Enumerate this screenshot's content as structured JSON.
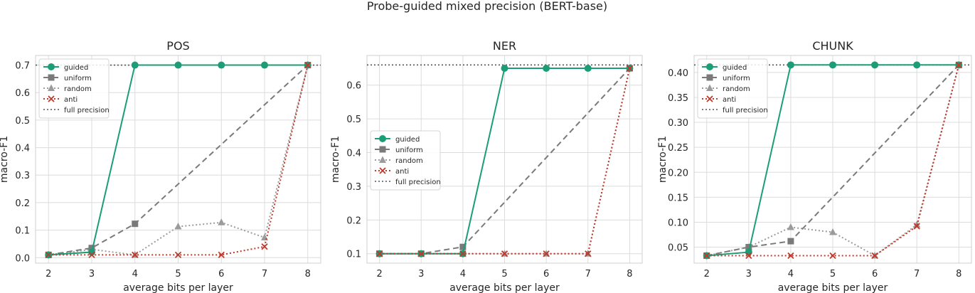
{
  "suptitle": "Probe-guided mixed precision (BERT-base)",
  "series_styles": {
    "guided": {
      "color": "#1b9e77",
      "dash": "",
      "marker": "circle",
      "width": 2
    },
    "uniform": {
      "color": "#7a7a7a",
      "dash": "8,5",
      "marker": "square",
      "width": 2
    },
    "random": {
      "color": "#9b9b9b",
      "dash": "2,3",
      "marker": "triangle",
      "width": 2
    },
    "anti": {
      "color": "#c0392b",
      "dash": "2,3",
      "marker": "x",
      "width": 2
    },
    "full precision": {
      "color": "#555555",
      "dash": "2,3",
      "marker": "none",
      "width": 1.6
    }
  },
  "chart_data": [
    {
      "type": "line",
      "title": "POS",
      "xlabel": "average bits per layer",
      "ylabel": "macro-F1",
      "x": [
        2,
        3,
        4,
        5,
        6,
        7,
        8
      ],
      "xlim": [
        1.7,
        8.3
      ],
      "ylim": [
        -0.02,
        0.735
      ],
      "yticks": [
        0.0,
        0.1,
        0.2,
        0.3,
        0.4,
        0.5,
        0.6,
        0.7
      ],
      "ytick_labels": [
        "0.0",
        "0.1",
        "0.2",
        "0.3",
        "0.4",
        "0.5",
        "0.6",
        "0.7"
      ],
      "grid": true,
      "legend_position": "upper-left",
      "series": [
        {
          "name": "guided",
          "points": [
            [
              2,
              0.01
            ],
            [
              3,
              0.02
            ],
            [
              4,
              0.7
            ],
            [
              5,
              0.7
            ],
            [
              6,
              0.7
            ],
            [
              7,
              0.7
            ],
            [
              8,
              0.7
            ]
          ]
        },
        {
          "name": "uniform",
          "points": [
            [
              2,
              0.01
            ],
            [
              3,
              0.035
            ],
            [
              4,
              0.123
            ],
            [
              8,
              0.7
            ]
          ]
        },
        {
          "name": "random",
          "points": [
            [
              2,
              0.01
            ],
            [
              3,
              0.03
            ],
            [
              4,
              0.01
            ],
            [
              5,
              0.113
            ],
            [
              6,
              0.128
            ],
            [
              7,
              0.073
            ],
            [
              8,
              0.7
            ]
          ]
        },
        {
          "name": "anti",
          "points": [
            [
              2,
              0.01
            ],
            [
              3,
              0.01
            ],
            [
              4,
              0.01
            ],
            [
              5,
              0.01
            ],
            [
              6,
              0.01
            ],
            [
              7,
              0.04
            ],
            [
              8,
              0.7
            ]
          ]
        }
      ],
      "reference": {
        "name": "full precision",
        "value": 0.7
      }
    },
    {
      "type": "line",
      "title": "NER",
      "xlabel": "average bits per layer",
      "ylabel": "macro-F1",
      "x": [
        2,
        3,
        4,
        5,
        6,
        7,
        8
      ],
      "xlim": [
        1.7,
        8.3
      ],
      "ylim": [
        0.072,
        0.688
      ],
      "yticks": [
        0.1,
        0.2,
        0.3,
        0.4,
        0.5,
        0.6
      ],
      "ytick_labels": [
        "0.1",
        "0.2",
        "0.3",
        "0.4",
        "0.5",
        "0.6"
      ],
      "grid": true,
      "legend_position": "center-left",
      "series": [
        {
          "name": "guided",
          "points": [
            [
              2,
              0.1
            ],
            [
              3,
              0.1
            ],
            [
              4,
              0.1
            ],
            [
              5,
              0.65
            ],
            [
              6,
              0.65
            ],
            [
              7,
              0.65
            ],
            [
              8,
              0.65
            ]
          ]
        },
        {
          "name": "uniform",
          "points": [
            [
              2,
              0.1
            ],
            [
              3,
              0.1
            ],
            [
              4,
              0.12
            ],
            [
              8,
              0.65
            ]
          ]
        },
        {
          "name": "random",
          "points": [
            [
              2,
              0.1
            ],
            [
              3,
              0.1
            ],
            [
              4,
              0.1
            ],
            [
              5,
              0.1
            ],
            [
              6,
              0.1
            ],
            [
              7,
              0.1
            ],
            [
              8,
              0.65
            ]
          ]
        },
        {
          "name": "anti",
          "points": [
            [
              2,
              0.1
            ],
            [
              3,
              0.1
            ],
            [
              4,
              0.1
            ],
            [
              5,
              0.1
            ],
            [
              6,
              0.1
            ],
            [
              7,
              0.1
            ],
            [
              8,
              0.65
            ]
          ]
        }
      ],
      "reference": {
        "name": "full precision",
        "value": 0.66
      }
    },
    {
      "type": "line",
      "title": "CHUNK",
      "xlabel": "average bits per layer",
      "ylabel": "macro-F1",
      "x": [
        2,
        3,
        4,
        5,
        6,
        7,
        8
      ],
      "xlim": [
        1.7,
        8.3
      ],
      "ylim": [
        0.018,
        0.434
      ],
      "yticks": [
        0.05,
        0.1,
        0.15,
        0.2,
        0.25,
        0.3,
        0.35,
        0.4
      ],
      "ytick_labels": [
        "0.05",
        "0.10",
        "0.15",
        "0.20",
        "0.25",
        "0.30",
        "0.35",
        "0.40"
      ],
      "grid": true,
      "legend_position": "upper-left",
      "series": [
        {
          "name": "guided",
          "points": [
            [
              2,
              0.033
            ],
            [
              3,
              0.04
            ],
            [
              4,
              0.415
            ],
            [
              5,
              0.415
            ],
            [
              6,
              0.415
            ],
            [
              7,
              0.415
            ],
            [
              8,
              0.415
            ]
          ]
        },
        {
          "name": "uniform",
          "points": [
            [
              2,
              0.033
            ],
            [
              3,
              0.05
            ],
            [
              4,
              0.062
            ],
            [
              8,
              0.415
            ]
          ]
        },
        {
          "name": "random",
          "points": [
            [
              2,
              0.033
            ],
            [
              3,
              0.05
            ],
            [
              4,
              0.09
            ],
            [
              5,
              0.08
            ],
            [
              6,
              0.033
            ],
            [
              7,
              0.095
            ],
            [
              8,
              0.415
            ]
          ]
        },
        {
          "name": "anti",
          "points": [
            [
              2,
              0.033
            ],
            [
              3,
              0.033
            ],
            [
              4,
              0.033
            ],
            [
              5,
              0.033
            ],
            [
              6,
              0.033
            ],
            [
              7,
              0.092
            ],
            [
              8,
              0.415
            ]
          ]
        }
      ],
      "reference": {
        "name": "full precision",
        "value": 0.415
      }
    }
  ]
}
